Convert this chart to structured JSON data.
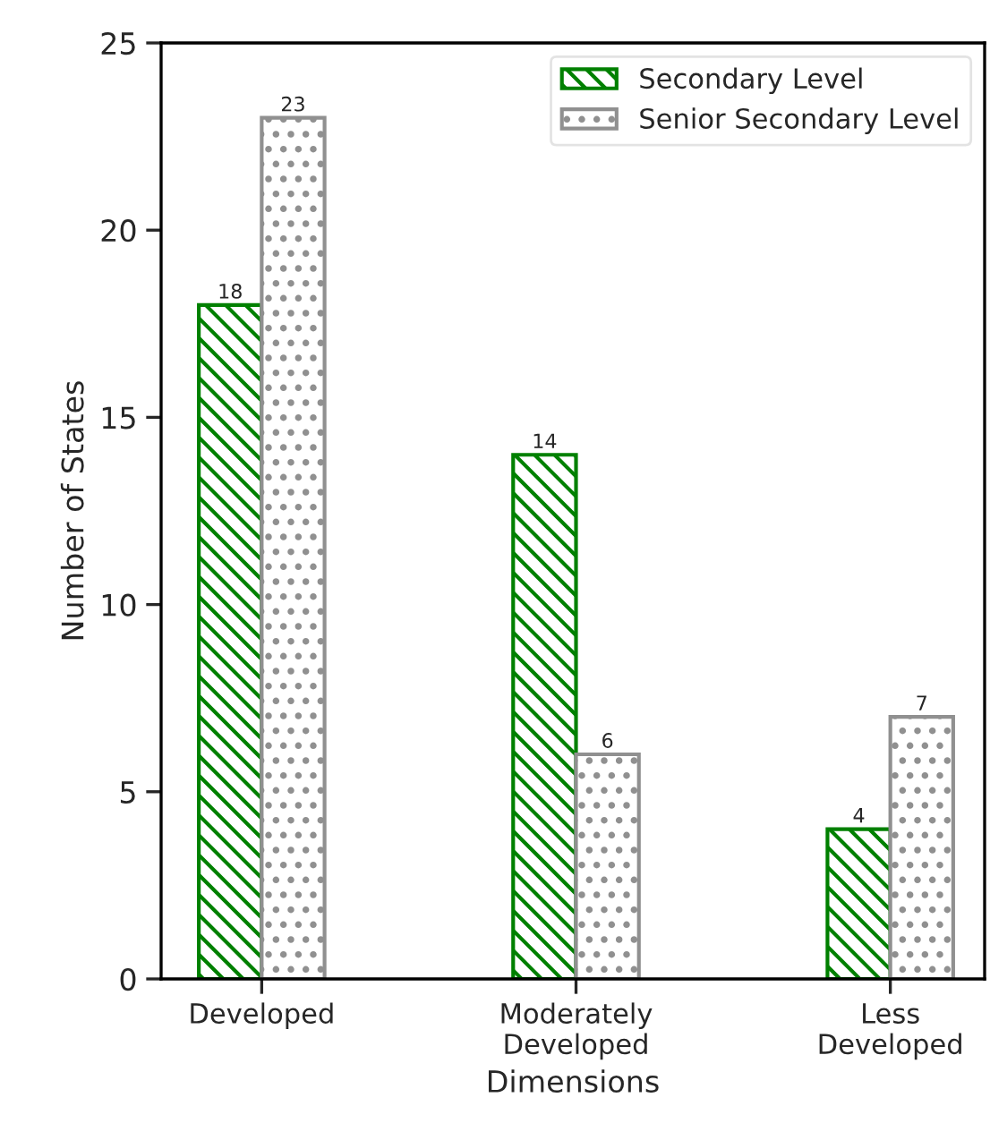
{
  "chart_data": {
    "type": "bar",
    "xlabel": "Dimensions",
    "ylabel": "Number of States",
    "categories": [
      "Developed",
      "Moderately\nDeveloped",
      "Less\nDeveloped"
    ],
    "series": [
      {
        "name": "Secondary Level",
        "color": "#008000",
        "values": [
          18,
          14,
          4
        ]
      },
      {
        "name": "Senior Secondary Level",
        "color": "#909090",
        "values": [
          23,
          6,
          7
        ]
      }
    ],
    "ylim": [
      0,
      25
    ],
    "yticks": [
      0,
      5,
      10,
      15,
      20,
      25
    ],
    "data_labels": true,
    "legend": "top right",
    "grid": false
  }
}
